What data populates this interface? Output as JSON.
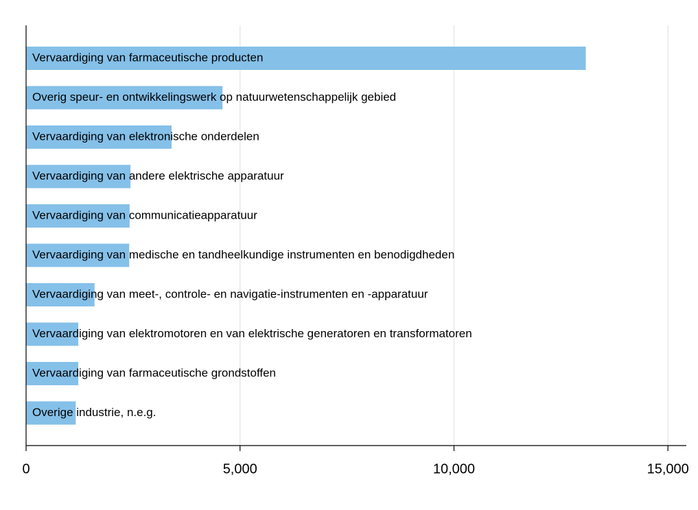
{
  "chart_data": {
    "type": "barh",
    "categories": [
      "Vervaardiging van farmaceutische producten",
      "Overig speur- en ontwikkelingswerk op natuurwetenschappelijk gebied",
      "Vervaardiging van elektronische onderdelen",
      "Vervaardiging van andere elektrische apparatuur",
      "Vervaardiging van communicatieapparatuur",
      "Vervaardiging van medische en tandheelkundige instrumenten en benodigdheden",
      "Vervaardiging van meet-, controle- en navigatie-instrumenten en -apparatuur",
      "Vervaardiging van elektromotoren en van elektrische generatoren en transformatoren",
      "Vervaardiging van farmaceutische grondstoffen",
      "Overige industrie, n.e.g."
    ],
    "values": [
      13080,
      4590,
      3400,
      2440,
      2420,
      2410,
      1600,
      1220,
      1220,
      1160
    ],
    "color": "#85c0e9",
    "xlim": [
      0,
      15430
    ],
    "xticks": [
      0,
      {
        "value": 5000,
        "label": "5,000"
      },
      {
        "value": 10000,
        "label": "10,000"
      },
      {
        "value": 15000,
        "label": "15,000"
      }
    ],
    "grid": true
  }
}
